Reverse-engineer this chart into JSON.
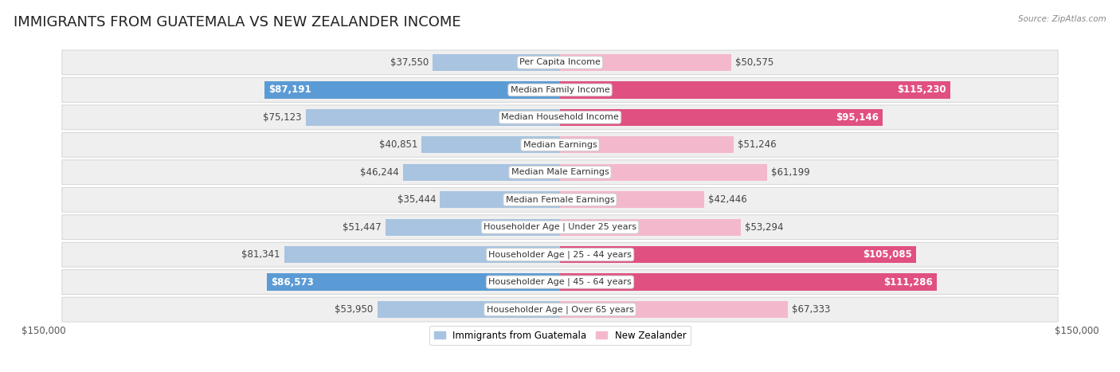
{
  "title": "IMMIGRANTS FROM GUATEMALA VS NEW ZEALANDER INCOME",
  "source": "Source: ZipAtlas.com",
  "categories": [
    "Per Capita Income",
    "Median Family Income",
    "Median Household Income",
    "Median Earnings",
    "Median Male Earnings",
    "Median Female Earnings",
    "Householder Age | Under 25 years",
    "Householder Age | 25 - 44 years",
    "Householder Age | 45 - 64 years",
    "Householder Age | Over 65 years"
  ],
  "guatemala_values": [
    37550,
    87191,
    75123,
    40851,
    46244,
    35444,
    51447,
    81341,
    86573,
    53950
  ],
  "nz_values": [
    50575,
    115230,
    95146,
    51246,
    61199,
    42446,
    53294,
    105085,
    111286,
    67333
  ],
  "guatemala_labels": [
    "$37,550",
    "$87,191",
    "$75,123",
    "$40,851",
    "$46,244",
    "$35,444",
    "$51,447",
    "$81,341",
    "$86,573",
    "$53,950"
  ],
  "nz_labels": [
    "$50,575",
    "$115,230",
    "$95,146",
    "$51,246",
    "$61,199",
    "$42,446",
    "$53,294",
    "$105,085",
    "$111,286",
    "$67,333"
  ],
  "guatemala_color_light": "#a8c4e0",
  "guatemala_color_dark": "#5b9bd5",
  "nz_color_light": "#f4b8cc",
  "nz_color_dark": "#e05080",
  "max_value": 150000,
  "bg_color": "#ffffff",
  "row_bg_color": "#efefef",
  "legend_guatemala": "Immigrants from Guatemala",
  "legend_nz": "New Zealander",
  "x_label_left": "$150,000",
  "x_label_right": "$150,000",
  "title_fontsize": 13,
  "label_fontsize": 8.5,
  "category_fontsize": 8,
  "dark_threshold": 0.55
}
